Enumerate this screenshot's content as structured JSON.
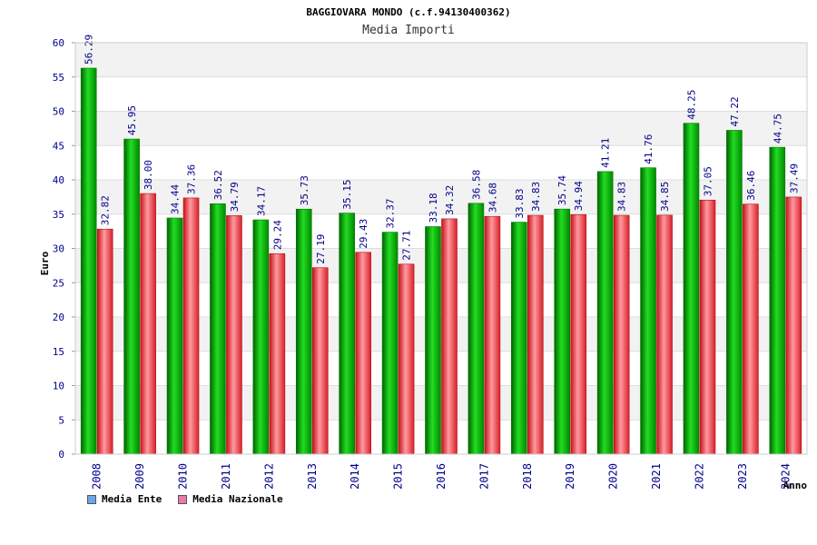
{
  "chart_data": {
    "type": "bar",
    "title": "BAGGIOVARA MONDO (c.f.94130400362)",
    "subtitle": "Media Importi",
    "xlabel": "Anno",
    "ylabel": "Euro",
    "ylim": [
      0,
      60
    ],
    "yticks": [
      0,
      5,
      10,
      15,
      20,
      25,
      30,
      35,
      40,
      45,
      50,
      55,
      60
    ],
    "grid": true,
    "legend_position": "bottom-left",
    "categories": [
      "2008",
      "2009",
      "2010",
      "2011",
      "2012",
      "2013",
      "2014",
      "2015",
      "2016",
      "2017",
      "2018",
      "2019",
      "2020",
      "2021",
      "2022",
      "2023",
      "2024"
    ],
    "series": [
      {
        "name": "Media Ente",
        "color": "#00b000",
        "legend_color": "#6aa6e8",
        "values": [
          56.29,
          45.95,
          34.44,
          36.52,
          34.17,
          35.73,
          35.15,
          32.37,
          33.18,
          36.58,
          33.83,
          35.74,
          41.21,
          41.76,
          48.25,
          47.22,
          44.75
        ],
        "labels": [
          "56.29",
          "45.95",
          "34.44",
          "36.52",
          "34.17",
          "35.73",
          "35.15",
          "32.37",
          "33.18",
          "36.58",
          "33.83",
          "35.74",
          "41.21",
          "41.76",
          "48.25",
          "47.22",
          "44.75"
        ]
      },
      {
        "name": "Media Nazionale",
        "color": "#e8303a",
        "legend_color": "#e87aa8",
        "values": [
          32.82,
          38.0,
          37.36,
          34.79,
          29.24,
          27.19,
          29.43,
          27.71,
          34.32,
          34.68,
          34.83,
          34.94,
          34.83,
          34.85,
          37.05,
          36.46,
          37.49
        ],
        "labels": [
          "32.82",
          "38.00",
          "37.36",
          "34.79",
          "29.24",
          "27.19",
          "29.43",
          "27.71",
          "34.32",
          "34.68",
          "34.83",
          "34.94",
          "34.83",
          "34.85",
          "37.05",
          "36.46",
          "37.49"
        ]
      }
    ]
  }
}
